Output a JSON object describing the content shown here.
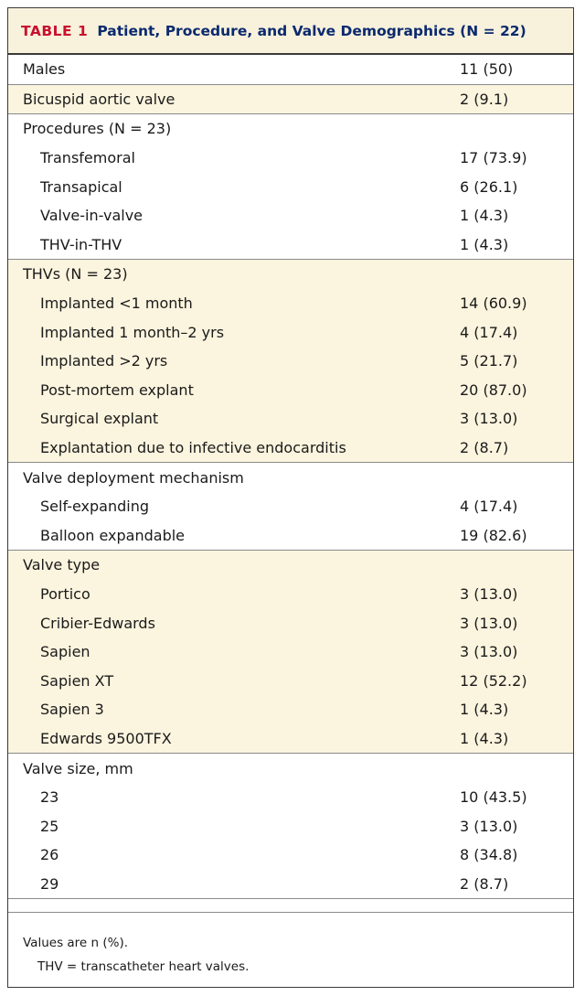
{
  "table": {
    "tag": "TABLE 1",
    "title": "Patient, Procedure, and Valve Demographics (N = 22)",
    "groups": [
      {
        "shaded": false,
        "rows": [
          {
            "label": "Males",
            "value": "11 (50)",
            "indent": false
          }
        ]
      },
      {
        "shaded": true,
        "rows": [
          {
            "label": "Bicuspid aortic valve",
            "value": "2 (9.1)",
            "indent": false
          }
        ]
      },
      {
        "shaded": false,
        "rows": [
          {
            "label": "Procedures (N = 23)",
            "value": "",
            "indent": false
          },
          {
            "label": "Transfemoral",
            "value": "17 (73.9)",
            "indent": true
          },
          {
            "label": "Transapical",
            "value": "6 (26.1)",
            "indent": true
          },
          {
            "label": "Valve-in-valve",
            "value": "1 (4.3)",
            "indent": true
          },
          {
            "label": "THV-in-THV",
            "value": "1 (4.3)",
            "indent": true
          }
        ]
      },
      {
        "shaded": true,
        "rows": [
          {
            "label": "THVs (N = 23)",
            "value": "",
            "indent": false
          },
          {
            "label": "Implanted <1 month",
            "value": "14 (60.9)",
            "indent": true
          },
          {
            "label": "Implanted 1 month–2 yrs",
            "value": "4 (17.4)",
            "indent": true
          },
          {
            "label": "Implanted >2 yrs",
            "value": "5 (21.7)",
            "indent": true
          },
          {
            "label": "Post-mortem explant",
            "value": "20 (87.0)",
            "indent": true
          },
          {
            "label": "Surgical explant",
            "value": "3 (13.0)",
            "indent": true
          },
          {
            "label": "Explantation due to infective endocarditis",
            "value": "2 (8.7)",
            "indent": true
          }
        ]
      },
      {
        "shaded": false,
        "rows": [
          {
            "label": "Valve deployment mechanism",
            "value": "",
            "indent": false
          },
          {
            "label": "Self-expanding",
            "value": "4 (17.4)",
            "indent": true
          },
          {
            "label": "Balloon expandable",
            "value": "19 (82.6)",
            "indent": true
          }
        ]
      },
      {
        "shaded": true,
        "rows": [
          {
            "label": "Valve type",
            "value": "",
            "indent": false
          },
          {
            "label": "Portico",
            "value": "3 (13.0)",
            "indent": true
          },
          {
            "label": "Cribier-Edwards",
            "value": "3 (13.0)",
            "indent": true
          },
          {
            "label": "Sapien",
            "value": "3 (13.0)",
            "indent": true
          },
          {
            "label": "Sapien XT",
            "value": "12 (52.2)",
            "indent": true
          },
          {
            "label": "Sapien 3",
            "value": "1 (4.3)",
            "indent": true
          },
          {
            "label": "Edwards 9500TFX",
            "value": "1 (4.3)",
            "indent": true
          }
        ]
      },
      {
        "shaded": false,
        "rows": [
          {
            "label": "Valve size, mm",
            "value": "",
            "indent": false
          },
          {
            "label": "23",
            "value": "10 (43.5)",
            "indent": true
          },
          {
            "label": "25",
            "value": "3 (13.0)",
            "indent": true
          },
          {
            "label": "26",
            "value": "8 (34.8)",
            "indent": true
          },
          {
            "label": "29",
            "value": "2 (8.7)",
            "indent": true
          }
        ]
      }
    ],
    "notes": {
      "values_note": "Values are n (%).",
      "abbreviation": "THV = transcatheter heart valves."
    }
  }
}
